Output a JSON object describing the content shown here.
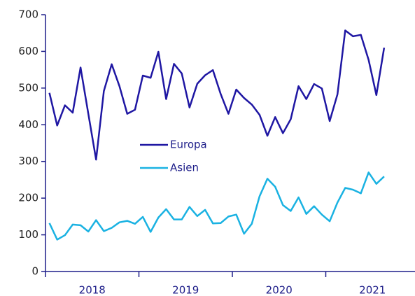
{
  "chart_data": {
    "type": "line",
    "categories": [
      null,
      null,
      null,
      null,
      null,
      null,
      null,
      null,
      null,
      null,
      null,
      null,
      null,
      null,
      null,
      null,
      null,
      null,
      null,
      null,
      null,
      null,
      null,
      null,
      null,
      null,
      null,
      null,
      null,
      null,
      null,
      null,
      null,
      null,
      null,
      null,
      null,
      null,
      null,
      null,
      null,
      null,
      null,
      null
    ],
    "year_labels": [
      "2018",
      "2019",
      "2020",
      "2021"
    ],
    "series": [
      {
        "name": "Europa",
        "color": "#1f17a3",
        "values": [
          487,
          398,
          453,
          433,
          556,
          430,
          305,
          492,
          565,
          505,
          430,
          441,
          534,
          528,
          599,
          470,
          566,
          540,
          447,
          512,
          535,
          549,
          484,
          430,
          496,
          473,
          455,
          427,
          370,
          421,
          377,
          415,
          505,
          470,
          511,
          499,
          410,
          483,
          657,
          641,
          645,
          577,
          481,
          610
        ]
      },
      {
        "name": "Asien",
        "color": "#1ab2e2",
        "values": [
          132,
          87,
          99,
          128,
          126,
          109,
          140,
          110,
          119,
          134,
          138,
          130,
          149,
          108,
          147,
          170,
          142,
          142,
          176,
          151,
          168,
          131,
          132,
          150,
          155,
          103,
          130,
          205,
          253,
          231,
          181,
          165,
          202,
          157,
          178,
          155,
          137,
          188,
          228,
          223,
          213,
          270,
          239,
          259
        ]
      }
    ],
    "ylim": [
      0,
      700
    ],
    "yticks": [
      0,
      100,
      200,
      300,
      400,
      500,
      600,
      700
    ],
    "grid": false
  }
}
